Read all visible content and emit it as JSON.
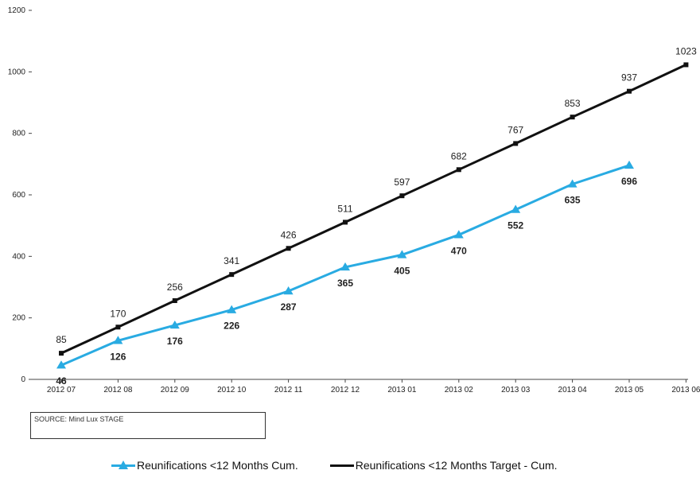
{
  "chart_data": {
    "type": "line",
    "title": "",
    "xlabel": "",
    "ylabel": "",
    "categories": [
      "2012 07",
      "2012 08",
      "2012 09",
      "2012 10",
      "2012 11",
      "2012 12",
      "2013 01",
      "2013 02",
      "2013 03",
      "2013 04",
      "2013 05",
      "2013 06"
    ],
    "ylim": [
      0,
      1200
    ],
    "yticks": [
      0,
      200,
      400,
      600,
      800,
      1000,
      1200
    ],
    "ytick_labels": [
      "0",
      "200",
      "400",
      "600",
      "800",
      "1000",
      "1200"
    ],
    "grid": false,
    "legend_position": "bottom",
    "series": [
      {
        "name": "Reunifications <12 Months Cum.",
        "color": "#29abe2",
        "marker": "triangle",
        "label_style": "bold",
        "values": [
          46,
          126,
          176,
          226,
          287,
          365,
          405,
          470,
          552,
          635,
          696,
          null
        ],
        "labels": [
          "46",
          "126",
          "176",
          "226",
          "287",
          "365",
          "405",
          "470",
          "552",
          "635",
          "696",
          ""
        ]
      },
      {
        "name": "Reunifications <12 Months Target - Cum.",
        "color": "#111111",
        "marker": "square",
        "label_style": "normal",
        "values": [
          85,
          170,
          256,
          341,
          426,
          511,
          597,
          682,
          767,
          853,
          937,
          1023
        ],
        "labels": [
          "85",
          "170",
          "256",
          "341",
          "426",
          "511",
          "597",
          "682",
          "767",
          "853",
          "937",
          "1023"
        ]
      }
    ]
  },
  "source_note": "SOURCE: Mind Lux STAGE"
}
